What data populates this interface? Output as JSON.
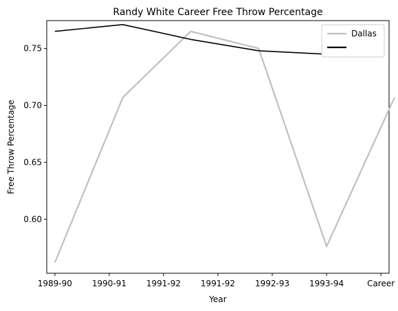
{
  "chart_data": {
    "type": "line",
    "title": "Randy White  Career Free Throw Percentage",
    "xlabel": "Year",
    "ylabel": "Free Throw Percentage",
    "x_tick_labels": [
      "1989-90",
      "1990-91",
      "1991-92",
      "1991-92",
      "1992-93",
      "1993-94",
      "Career"
    ],
    "x_range": [
      -0.15,
      6.15
    ],
    "y_ticks": [
      0.6,
      0.65,
      0.7,
      0.75
    ],
    "y_tick_labels": [
      "0.60",
      "0.65",
      "0.70",
      "0.75"
    ],
    "ylim": [
      0.5525,
      0.7745
    ],
    "grid": false,
    "legend_position": "top-right",
    "series": [
      {
        "name": "Dallas",
        "color": "#bfbfbf",
        "x": [
          0,
          1.25,
          2.5,
          3.75,
          5,
          6.25
        ],
        "y": [
          0.562,
          0.707,
          0.765,
          0.75,
          0.576,
          0.707
        ]
      },
      {
        "name": "",
        "color": "#000000",
        "x": [
          0,
          1.25,
          2.5,
          3.75,
          5
        ],
        "y": [
          0.765,
          0.771,
          0.758,
          0.748,
          0.745
        ]
      }
    ]
  }
}
